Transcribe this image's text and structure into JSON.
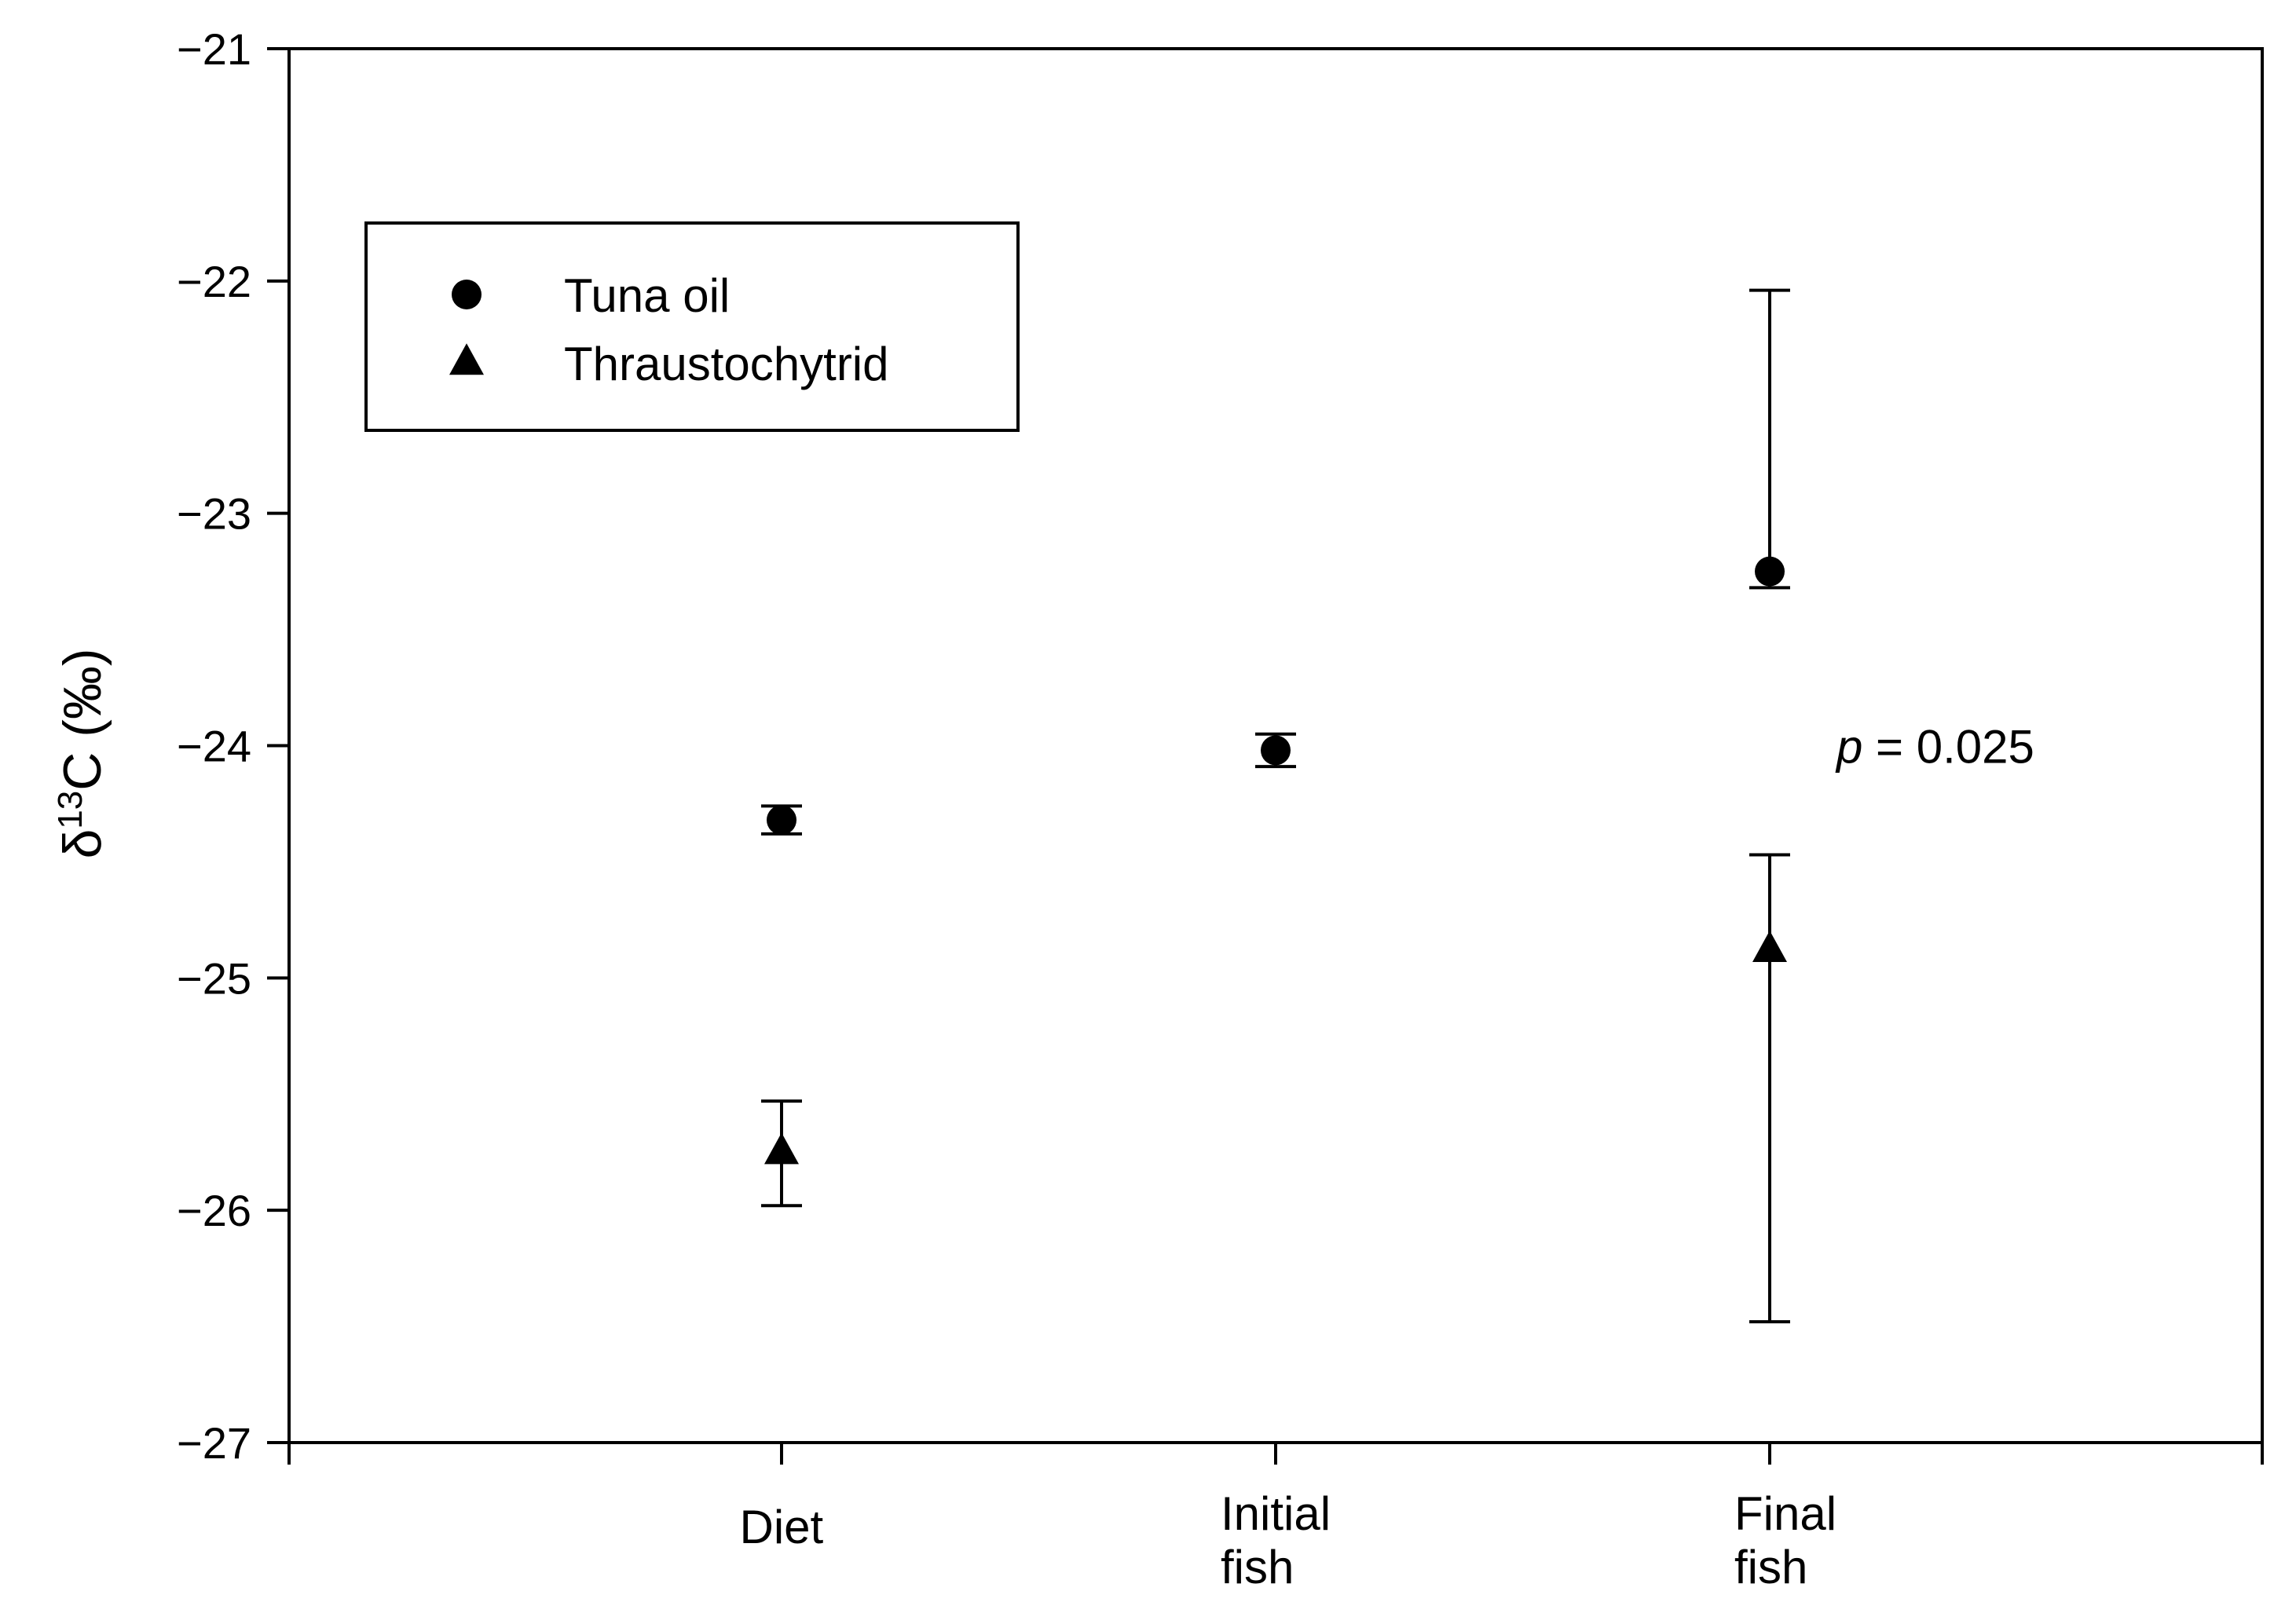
{
  "chart_data": {
    "type": "scatter",
    "title": "",
    "xlabel": "",
    "ylabel": "δ13C (‰)",
    "ylabel_parts": {
      "symbol": "δ",
      "superscript": "13",
      "rest": "C (‰)"
    },
    "categories": [
      {
        "id": "diet",
        "lines": [
          "Diet"
        ]
      },
      {
        "id": "initial",
        "lines": [
          "Initial",
          "fish"
        ]
      },
      {
        "id": "final",
        "lines": [
          "Final",
          "fish"
        ]
      }
    ],
    "ylim": [
      -27,
      -21
    ],
    "yticks": [
      -27,
      -26,
      -25,
      -24,
      -23,
      -22,
      -21
    ],
    "ytick_labels": [
      "−27",
      "−26",
      "−25",
      "−24",
      "−23",
      "−22",
      "−21"
    ],
    "grid": false,
    "legend_position": "upper-left",
    "series": [
      {
        "name": "Tuna oil",
        "marker": "circle",
        "color": "#000000",
        "points": [
          {
            "category": "diet",
            "y": -24.32,
            "err_low": -24.38,
            "err_high": -24.26
          },
          {
            "category": "initial",
            "y": -24.02,
            "err_low": -24.09,
            "err_high": -23.95
          },
          {
            "category": "final",
            "y": -23.25,
            "err_low": -23.32,
            "err_high": -22.04
          }
        ]
      },
      {
        "name": "Thraustochytrid",
        "marker": "triangle",
        "color": "#000000",
        "points": [
          {
            "category": "diet",
            "y": -25.75,
            "err_low": -25.98,
            "err_high": -25.53
          },
          {
            "category": "final",
            "y": -24.88,
            "err_low": -26.48,
            "err_high": -24.47
          }
        ]
      }
    ],
    "annotations": [
      {
        "category": "final",
        "italic": "p",
        "text": " = 0.025",
        "y": -24.0
      }
    ]
  }
}
